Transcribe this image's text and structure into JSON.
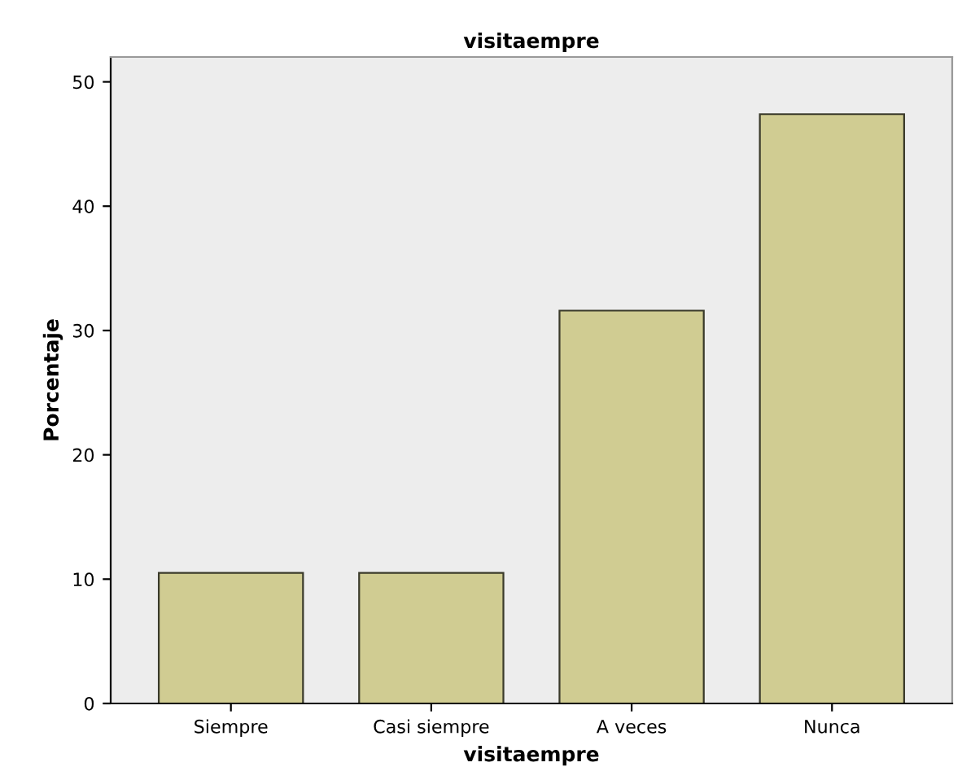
{
  "chart_data": {
    "type": "bar",
    "title": "visitaempre",
    "xlabel": "visitaempre",
    "ylabel": "Porcentaje",
    "categories": [
      "Siempre",
      "Casi siempre",
      "A veces",
      "Nunca"
    ],
    "values": [
      10.5,
      10.5,
      31.6,
      47.4
    ],
    "color": "#d0cc92",
    "ylim": [
      0,
      52
    ],
    "yticks": [
      0,
      10,
      20,
      30,
      40,
      50
    ],
    "grid": false
  }
}
